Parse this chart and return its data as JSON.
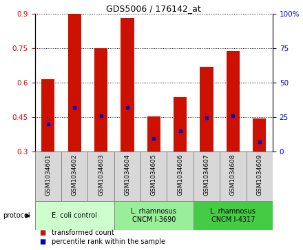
{
  "title": "GDS5006 / 176142_at",
  "samples": [
    "GSM1034601",
    "GSM1034602",
    "GSM1034603",
    "GSM1034604",
    "GSM1034605",
    "GSM1034606",
    "GSM1034607",
    "GSM1034608",
    "GSM1034609"
  ],
  "red_values": [
    0.615,
    0.9,
    0.75,
    0.882,
    0.451,
    0.535,
    0.668,
    0.737,
    0.443
  ],
  "blue_values": [
    0.42,
    0.49,
    0.455,
    0.49,
    0.355,
    0.39,
    0.445,
    0.455,
    0.34
  ],
  "bar_bottom": 0.3,
  "ylim_left": [
    0.3,
    0.9
  ],
  "ylim_right": [
    0,
    100
  ],
  "yticks_left": [
    0.3,
    0.45,
    0.6,
    0.75,
    0.9
  ],
  "yticks_right": [
    0,
    25,
    50,
    75,
    100
  ],
  "left_tick_color": "#cc0000",
  "right_tick_color": "#0000cc",
  "bar_color": "#cc1100",
  "blue_color": "#0000cc",
  "protocols": [
    {
      "label": "E. coli control",
      "span": [
        0,
        3
      ],
      "color": "#ccffcc"
    },
    {
      "label": "L. rhamnosus\nCNCM I-3690",
      "span": [
        3,
        6
      ],
      "color": "#99ee99"
    },
    {
      "label": "L. rhamnosus\nCNCM I-4317",
      "span": [
        6,
        9
      ],
      "color": "#44cc44"
    }
  ],
  "legend": [
    {
      "label": "transformed count",
      "color": "#cc1100"
    },
    {
      "label": "percentile rank within the sample",
      "color": "#0000cc"
    }
  ],
  "bar_width": 0.5,
  "title_fontsize": 9,
  "tick_fontsize": 7.5,
  "xtick_fontsize": 6.5,
  "legend_fontsize": 7,
  "proto_fontsize": 7
}
